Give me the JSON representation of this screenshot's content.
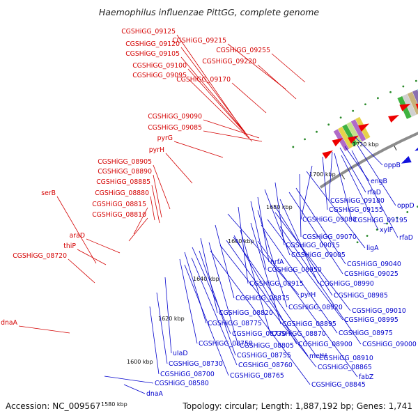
{
  "title": "Haemophilus influenzae PittGG, complete genome",
  "accession": "Accession: NC_009567",
  "summary": "Topology: circular; Length: 1,887,192 bp; Genes: 1,741",
  "colors": {
    "forward_label": "#d40000",
    "reverse_label": "#0000cc",
    "forward_arrow": "#ee0000",
    "reverse_arrow": "#1111dd",
    "backbone": "#8c8c8c",
    "gc_dots": "#2a8a2a"
  },
  "ticks": [
    {
      "label": "1580 kbp"
    },
    {
      "label": "1600 kbp"
    },
    {
      "label": "1620 kbp"
    },
    {
      "label": "1640 kbp"
    },
    {
      "label": "1660 kbp"
    },
    {
      "label": "1680 kbp"
    },
    {
      "label": "1700 kbp"
    },
    {
      "label": "1720 kbp"
    }
  ],
  "forward_labels": [
    "CGSHiGG_09125",
    "CGSHiGG_09215",
    "CGSHiGG_09120",
    "CGSHiGG_09255",
    "CGSHiGG_09105",
    "CGSHiGG_09220",
    "CGSHiGG_09100",
    "CGSHiGG_09095",
    "CGSHiGG_09170",
    "CGSHiGG_09090",
    "CGSHiGG_09085",
    "pyrG",
    "pyrH",
    "CGSHiGG_08905",
    "CGSHiGG_08890",
    "CGSHiGG_08885",
    "serB",
    "CGSHiGG_08880",
    "CGSHiGG_08815",
    "CGSHiGG_08810",
    "araD",
    "thiP",
    "CGSHiGG_08720",
    "dnaA"
  ],
  "reverse_labels": [
    "oppB",
    "engB",
    "rfaD",
    "CGSHiGG_09180",
    "oppD",
    "CGSHiGG_09155",
    "CGSHiGG_09195",
    "CGSHiGG_09080",
    "xylF",
    "rfaD",
    "CGSHiGG_09070",
    "CGSHiGG_09015",
    "ligA",
    "CGSHiGG_09005",
    "nrfA",
    "CGSHiGG_09040",
    "CGSHiGG_08950",
    "CGSHiGG_09025",
    "CGSHiGG_08915",
    "CGSHiGG_08990",
    "pyrH",
    "CGSHiGG_08985",
    "CGSHiGG_08875",
    "CGSHiGG_08920",
    "CGSHiGG_09010",
    "CGSHiGG_08820",
    "CGSHiGG_08995",
    "CGSHiGG_08895",
    "CGSHiGG_08775",
    "CGSHiGG_08975",
    "CGSHiGG_08770",
    "CGSHiGG_08870",
    "CGSHiGG_09000",
    "CGSHiGG_08750",
    "CGSHiGG_08805",
    "CGSHiGG_08900",
    "uIaD",
    "CGSHiGG_08755",
    "metH",
    "CGSHiGG_08910",
    "CGSHiGG_08730",
    "CGSHiGG_08760",
    "CGSHiGG_08865",
    "fabZ",
    "CGSHiGG_08700",
    "CGSHiGG_08765",
    "CGSHiGG_08845",
    "CGSHiGG_08580",
    "dnaA"
  ]
}
